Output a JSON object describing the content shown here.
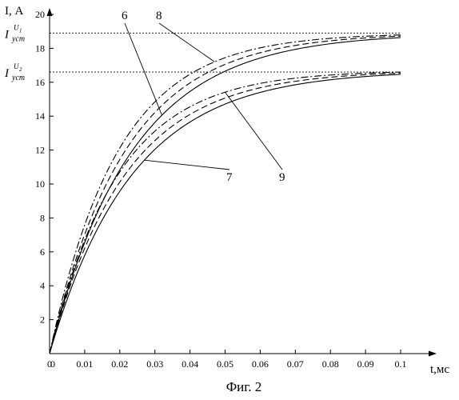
{
  "figure_caption": "Фиг. 2",
  "chart_data": {
    "type": "line",
    "xlabel": "t,мс",
    "ylabel": "I, А",
    "xlim": [
      0,
      0.1
    ],
    "ylim": [
      0,
      20
    ],
    "x_ticks": [
      "0",
      "0.01",
      "0.02",
      "0.03",
      "0.04",
      "0.05",
      "0.06",
      "0.07",
      "0.08",
      "0.09",
      "0.1"
    ],
    "y_ticks": [
      "0",
      "2",
      "4",
      "6",
      "8",
      "10",
      "12",
      "14",
      "16",
      "18",
      "20"
    ],
    "grid": false,
    "reference_lines": [
      {
        "label_main": "I",
        "label_sub": "уст",
        "label_sup_main": "U",
        "label_sup_sub": "1",
        "y": 18.9
      },
      {
        "label_main": "I",
        "label_sub": "уст",
        "label_sup_main": "U",
        "label_sup_sub": "2",
        "y": 16.6
      }
    ],
    "series": [
      {
        "style": "dashdot",
        "asymptote": 18.9,
        "tau": 0.0195
      },
      {
        "style": "dashed",
        "asymptote": 18.9,
        "tau": 0.0215
      },
      {
        "style": "solid",
        "asymptote": 18.9,
        "tau": 0.0235
      },
      {
        "style": "dashdot",
        "asymptote": 16.7,
        "tau": 0.0195
      },
      {
        "style": "dashed",
        "asymptote": 16.7,
        "tau": 0.0215
      },
      {
        "style": "solid",
        "asymptote": 16.7,
        "tau": 0.0235
      }
    ],
    "annotations": [
      {
        "text": "6",
        "target_series": 2,
        "target_x": 0.032
      },
      {
        "text": "8",
        "target_series": 0,
        "target_x": 0.047
      },
      {
        "text": "7",
        "target_series": 5,
        "target_x": 0.027
      },
      {
        "text": "9",
        "target_series": 3,
        "target_x": 0.05
      }
    ]
  }
}
